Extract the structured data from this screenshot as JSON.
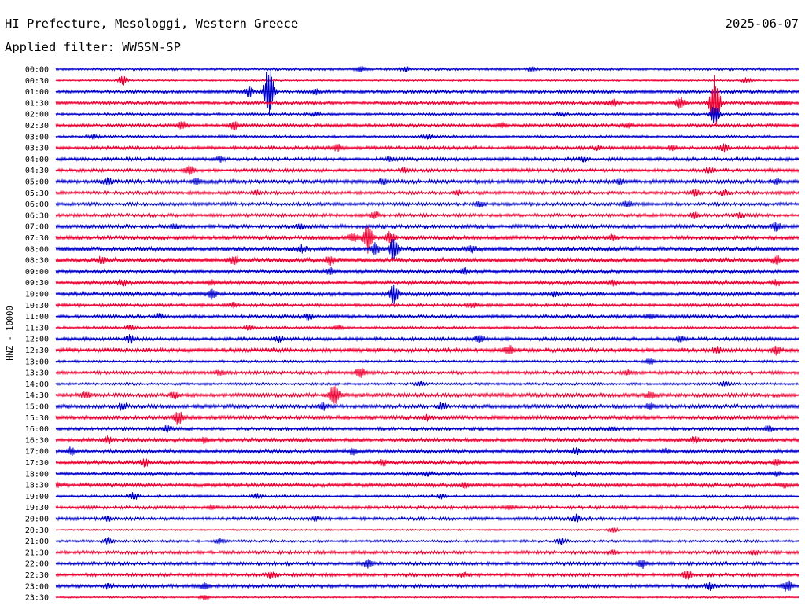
{
  "header": {
    "title": "HI Prefecture, Mesologgi, Western Greece",
    "date": "2025-06-07",
    "filter": "Applied filter: WWSSN-SP"
  },
  "chart_data": {
    "type": "line",
    "title": "HI Prefecture, Mesologgi, Western Greece",
    "subtitle": "Applied filter: WWSSN-SP",
    "xlabel": "",
    "ylabel": "HNZ - 10000",
    "colors": [
      "#0000cc",
      "#ee0033"
    ],
    "grid": false,
    "rows": [
      {
        "label": "00:00",
        "series": 0,
        "amp": 1.5,
        "events": [
          [
            0.41,
            4
          ],
          [
            0.47,
            3.5
          ],
          [
            0.64,
            2.5
          ]
        ]
      },
      {
        "label": "00:30",
        "series": 1,
        "amp": 1.0,
        "events": [
          [
            0.09,
            6
          ],
          [
            0.93,
            3
          ]
        ]
      },
      {
        "label": "01:00",
        "series": 0,
        "amp": 2.0,
        "events": [
          [
            0.26,
            6
          ],
          [
            0.287,
            34
          ],
          [
            0.35,
            3
          ]
        ]
      },
      {
        "label": "01:30",
        "series": 1,
        "amp": 2.0,
        "events": [
          [
            0.75,
            4
          ],
          [
            0.84,
            8
          ],
          [
            0.887,
            40
          ],
          [
            0.98,
            3
          ]
        ]
      },
      {
        "label": "02:00",
        "series": 0,
        "amp": 1.5,
        "events": [
          [
            0.35,
            3
          ],
          [
            0.887,
            12
          ],
          [
            0.68,
            2
          ]
        ]
      },
      {
        "label": "02:30",
        "series": 1,
        "amp": 2.0,
        "events": [
          [
            0.17,
            5
          ],
          [
            0.24,
            6
          ],
          [
            0.6,
            3
          ],
          [
            0.77,
            3
          ]
        ]
      },
      {
        "label": "03:00",
        "series": 0,
        "amp": 1.5,
        "events": [
          [
            0.05,
            3
          ],
          [
            0.5,
            3
          ]
        ]
      },
      {
        "label": "03:30",
        "series": 1,
        "amp": 2.0,
        "events": [
          [
            0.38,
            4
          ],
          [
            0.73,
            3
          ],
          [
            0.83,
            3
          ],
          [
            0.9,
            5
          ]
        ]
      },
      {
        "label": "04:00",
        "series": 0,
        "amp": 2.0,
        "events": [
          [
            0.22,
            3
          ],
          [
            0.45,
            3
          ],
          [
            0.71,
            3
          ]
        ]
      },
      {
        "label": "04:30",
        "series": 1,
        "amp": 2.0,
        "events": [
          [
            0.18,
            5
          ],
          [
            0.47,
            3
          ],
          [
            0.88,
            4
          ]
        ]
      },
      {
        "label": "05:00",
        "series": 0,
        "amp": 2.5,
        "events": [
          [
            0.07,
            4
          ],
          [
            0.19,
            4
          ],
          [
            0.44,
            4
          ],
          [
            0.76,
            3
          ],
          [
            0.97,
            3
          ]
        ]
      },
      {
        "label": "05:30",
        "series": 1,
        "amp": 2.0,
        "events": [
          [
            0.27,
            3
          ],
          [
            0.54,
            3
          ],
          [
            0.86,
            4
          ],
          [
            0.9,
            4
          ]
        ]
      },
      {
        "label": "06:00",
        "series": 0,
        "amp": 2.0,
        "events": [
          [
            0.57,
            4
          ],
          [
            0.77,
            4
          ]
        ]
      },
      {
        "label": "06:30",
        "series": 1,
        "amp": 2.0,
        "events": [
          [
            0.43,
            4
          ],
          [
            0.86,
            4
          ],
          [
            0.92,
            3
          ]
        ]
      },
      {
        "label": "07:00",
        "series": 0,
        "amp": 2.5,
        "events": [
          [
            0.16,
            3
          ],
          [
            0.33,
            3
          ],
          [
            0.97,
            5
          ]
        ]
      },
      {
        "label": "07:30",
        "series": 1,
        "amp": 2.5,
        "events": [
          [
            0.4,
            6
          ],
          [
            0.42,
            18
          ],
          [
            0.45,
            8
          ],
          [
            0.75,
            4
          ]
        ]
      },
      {
        "label": "08:00",
        "series": 0,
        "amp": 3.0,
        "events": [
          [
            0.33,
            4
          ],
          [
            0.43,
            6
          ],
          [
            0.455,
            14
          ],
          [
            0.56,
            4
          ]
        ]
      },
      {
        "label": "08:30",
        "series": 1,
        "amp": 3.0,
        "events": [
          [
            0.06,
            4
          ],
          [
            0.24,
            5
          ],
          [
            0.37,
            5
          ],
          [
            0.97,
            5
          ]
        ]
      },
      {
        "label": "09:00",
        "series": 0,
        "amp": 2.5,
        "events": [
          [
            0.37,
            4
          ],
          [
            0.55,
            4
          ]
        ]
      },
      {
        "label": "09:30",
        "series": 1,
        "amp": 2.5,
        "events": [
          [
            0.09,
            4
          ],
          [
            0.21,
            3
          ],
          [
            0.75,
            3
          ],
          [
            0.97,
            3
          ]
        ]
      },
      {
        "label": "10:00",
        "series": 0,
        "amp": 2.5,
        "events": [
          [
            0.21,
            6
          ],
          [
            0.455,
            12
          ],
          [
            0.67,
            3
          ]
        ]
      },
      {
        "label": "10:30",
        "series": 1,
        "amp": 2.0,
        "events": [
          [
            0.24,
            3
          ],
          [
            0.56,
            3
          ]
        ]
      },
      {
        "label": "11:00",
        "series": 0,
        "amp": 2.0,
        "events": [
          [
            0.34,
            4
          ],
          [
            0.14,
            3
          ],
          [
            0.8,
            3
          ]
        ]
      },
      {
        "label": "11:30",
        "series": 1,
        "amp": 1.5,
        "events": [
          [
            0.1,
            3
          ],
          [
            0.26,
            3
          ],
          [
            0.38,
            3
          ]
        ]
      },
      {
        "label": "12:00",
        "series": 0,
        "amp": 2.0,
        "events": [
          [
            0.1,
            5
          ],
          [
            0.3,
            4
          ],
          [
            0.57,
            5
          ],
          [
            0.84,
            4
          ]
        ]
      },
      {
        "label": "12:30",
        "series": 1,
        "amp": 2.5,
        "events": [
          [
            0.61,
            5
          ],
          [
            0.89,
            4
          ],
          [
            0.97,
            5
          ]
        ]
      },
      {
        "label": "13:00",
        "series": 0,
        "amp": 1.5,
        "events": [
          [
            0.8,
            4
          ]
        ]
      },
      {
        "label": "13:30",
        "series": 1,
        "amp": 2.0,
        "events": [
          [
            0.41,
            7
          ],
          [
            0.22,
            3
          ],
          [
            0.77,
            3
          ]
        ]
      },
      {
        "label": "14:00",
        "series": 0,
        "amp": 1.5,
        "events": [
          [
            0.49,
            3
          ],
          [
            0.9,
            3
          ]
        ]
      },
      {
        "label": "14:30",
        "series": 1,
        "amp": 2.5,
        "events": [
          [
            0.04,
            4
          ],
          [
            0.16,
            4
          ],
          [
            0.375,
            14
          ],
          [
            0.8,
            4
          ]
        ]
      },
      {
        "label": "15:00",
        "series": 0,
        "amp": 2.5,
        "events": [
          [
            0.09,
            4
          ],
          [
            0.36,
            4
          ],
          [
            0.52,
            4
          ],
          [
            0.8,
            4
          ]
        ]
      },
      {
        "label": "15:30",
        "series": 1,
        "amp": 2.5,
        "events": [
          [
            0.165,
            8
          ],
          [
            0.5,
            3
          ]
        ]
      },
      {
        "label": "16:00",
        "series": 0,
        "amp": 2.0,
        "events": [
          [
            0.15,
            4
          ],
          [
            0.75,
            3
          ],
          [
            0.96,
            4
          ]
        ]
      },
      {
        "label": "16:30",
        "series": 1,
        "amp": 2.5,
        "events": [
          [
            0.07,
            4
          ],
          [
            0.2,
            3
          ],
          [
            0.86,
            4
          ]
        ]
      },
      {
        "label": "17:00",
        "series": 0,
        "amp": 2.5,
        "events": [
          [
            0.02,
            4
          ],
          [
            0.4,
            4
          ],
          [
            0.7,
            4
          ],
          [
            0.82,
            3
          ]
        ]
      },
      {
        "label": "17:30",
        "series": 1,
        "amp": 2.5,
        "events": [
          [
            0.12,
            4
          ],
          [
            0.44,
            3
          ],
          [
            0.97,
            4
          ]
        ]
      },
      {
        "label": "18:00",
        "series": 0,
        "amp": 2.0,
        "events": [
          [
            0.5,
            3
          ],
          [
            0.7,
            3
          ],
          [
            0.97,
            3
          ]
        ]
      },
      {
        "label": "18:30",
        "series": 1,
        "amp": 2.5,
        "events": [
          [
            0.0,
            3
          ],
          [
            0.55,
            3
          ],
          [
            0.98,
            3
          ]
        ]
      },
      {
        "label": "19:00",
        "series": 0,
        "amp": 1.5,
        "events": [
          [
            0.105,
            5
          ],
          [
            0.27,
            3
          ],
          [
            0.52,
            3
          ]
        ]
      },
      {
        "label": "19:30",
        "series": 1,
        "amp": 2.0,
        "events": [
          [
            0.21,
            3
          ],
          [
            0.61,
            3
          ]
        ]
      },
      {
        "label": "20:00",
        "series": 0,
        "amp": 2.0,
        "events": [
          [
            0.07,
            3
          ],
          [
            0.7,
            5
          ],
          [
            0.35,
            3
          ]
        ]
      },
      {
        "label": "20:30",
        "series": 1,
        "amp": 1.0,
        "events": [
          [
            0.75,
            4
          ]
        ]
      },
      {
        "label": "21:00",
        "series": 0,
        "amp": 1.5,
        "events": [
          [
            0.07,
            4
          ],
          [
            0.68,
            4
          ],
          [
            0.22,
            3
          ]
        ]
      },
      {
        "label": "21:30",
        "series": 1,
        "amp": 2.0,
        "events": [
          [
            0.75,
            3
          ],
          [
            0.94,
            3
          ]
        ]
      },
      {
        "label": "22:00",
        "series": 0,
        "amp": 2.0,
        "events": [
          [
            0.42,
            5
          ],
          [
            0.79,
            5
          ]
        ]
      },
      {
        "label": "22:30",
        "series": 1,
        "amp": 2.0,
        "events": [
          [
            0.29,
            4
          ],
          [
            0.85,
            5
          ],
          [
            0.55,
            3
          ]
        ]
      },
      {
        "label": "23:00",
        "series": 0,
        "amp": 2.0,
        "events": [
          [
            0.07,
            3
          ],
          [
            0.2,
            4
          ],
          [
            0.88,
            5
          ],
          [
            0.985,
            7
          ]
        ]
      },
      {
        "label": "23:30",
        "series": 1,
        "amp": 1.0,
        "events": [
          [
            0.2,
            3
          ]
        ]
      }
    ]
  }
}
